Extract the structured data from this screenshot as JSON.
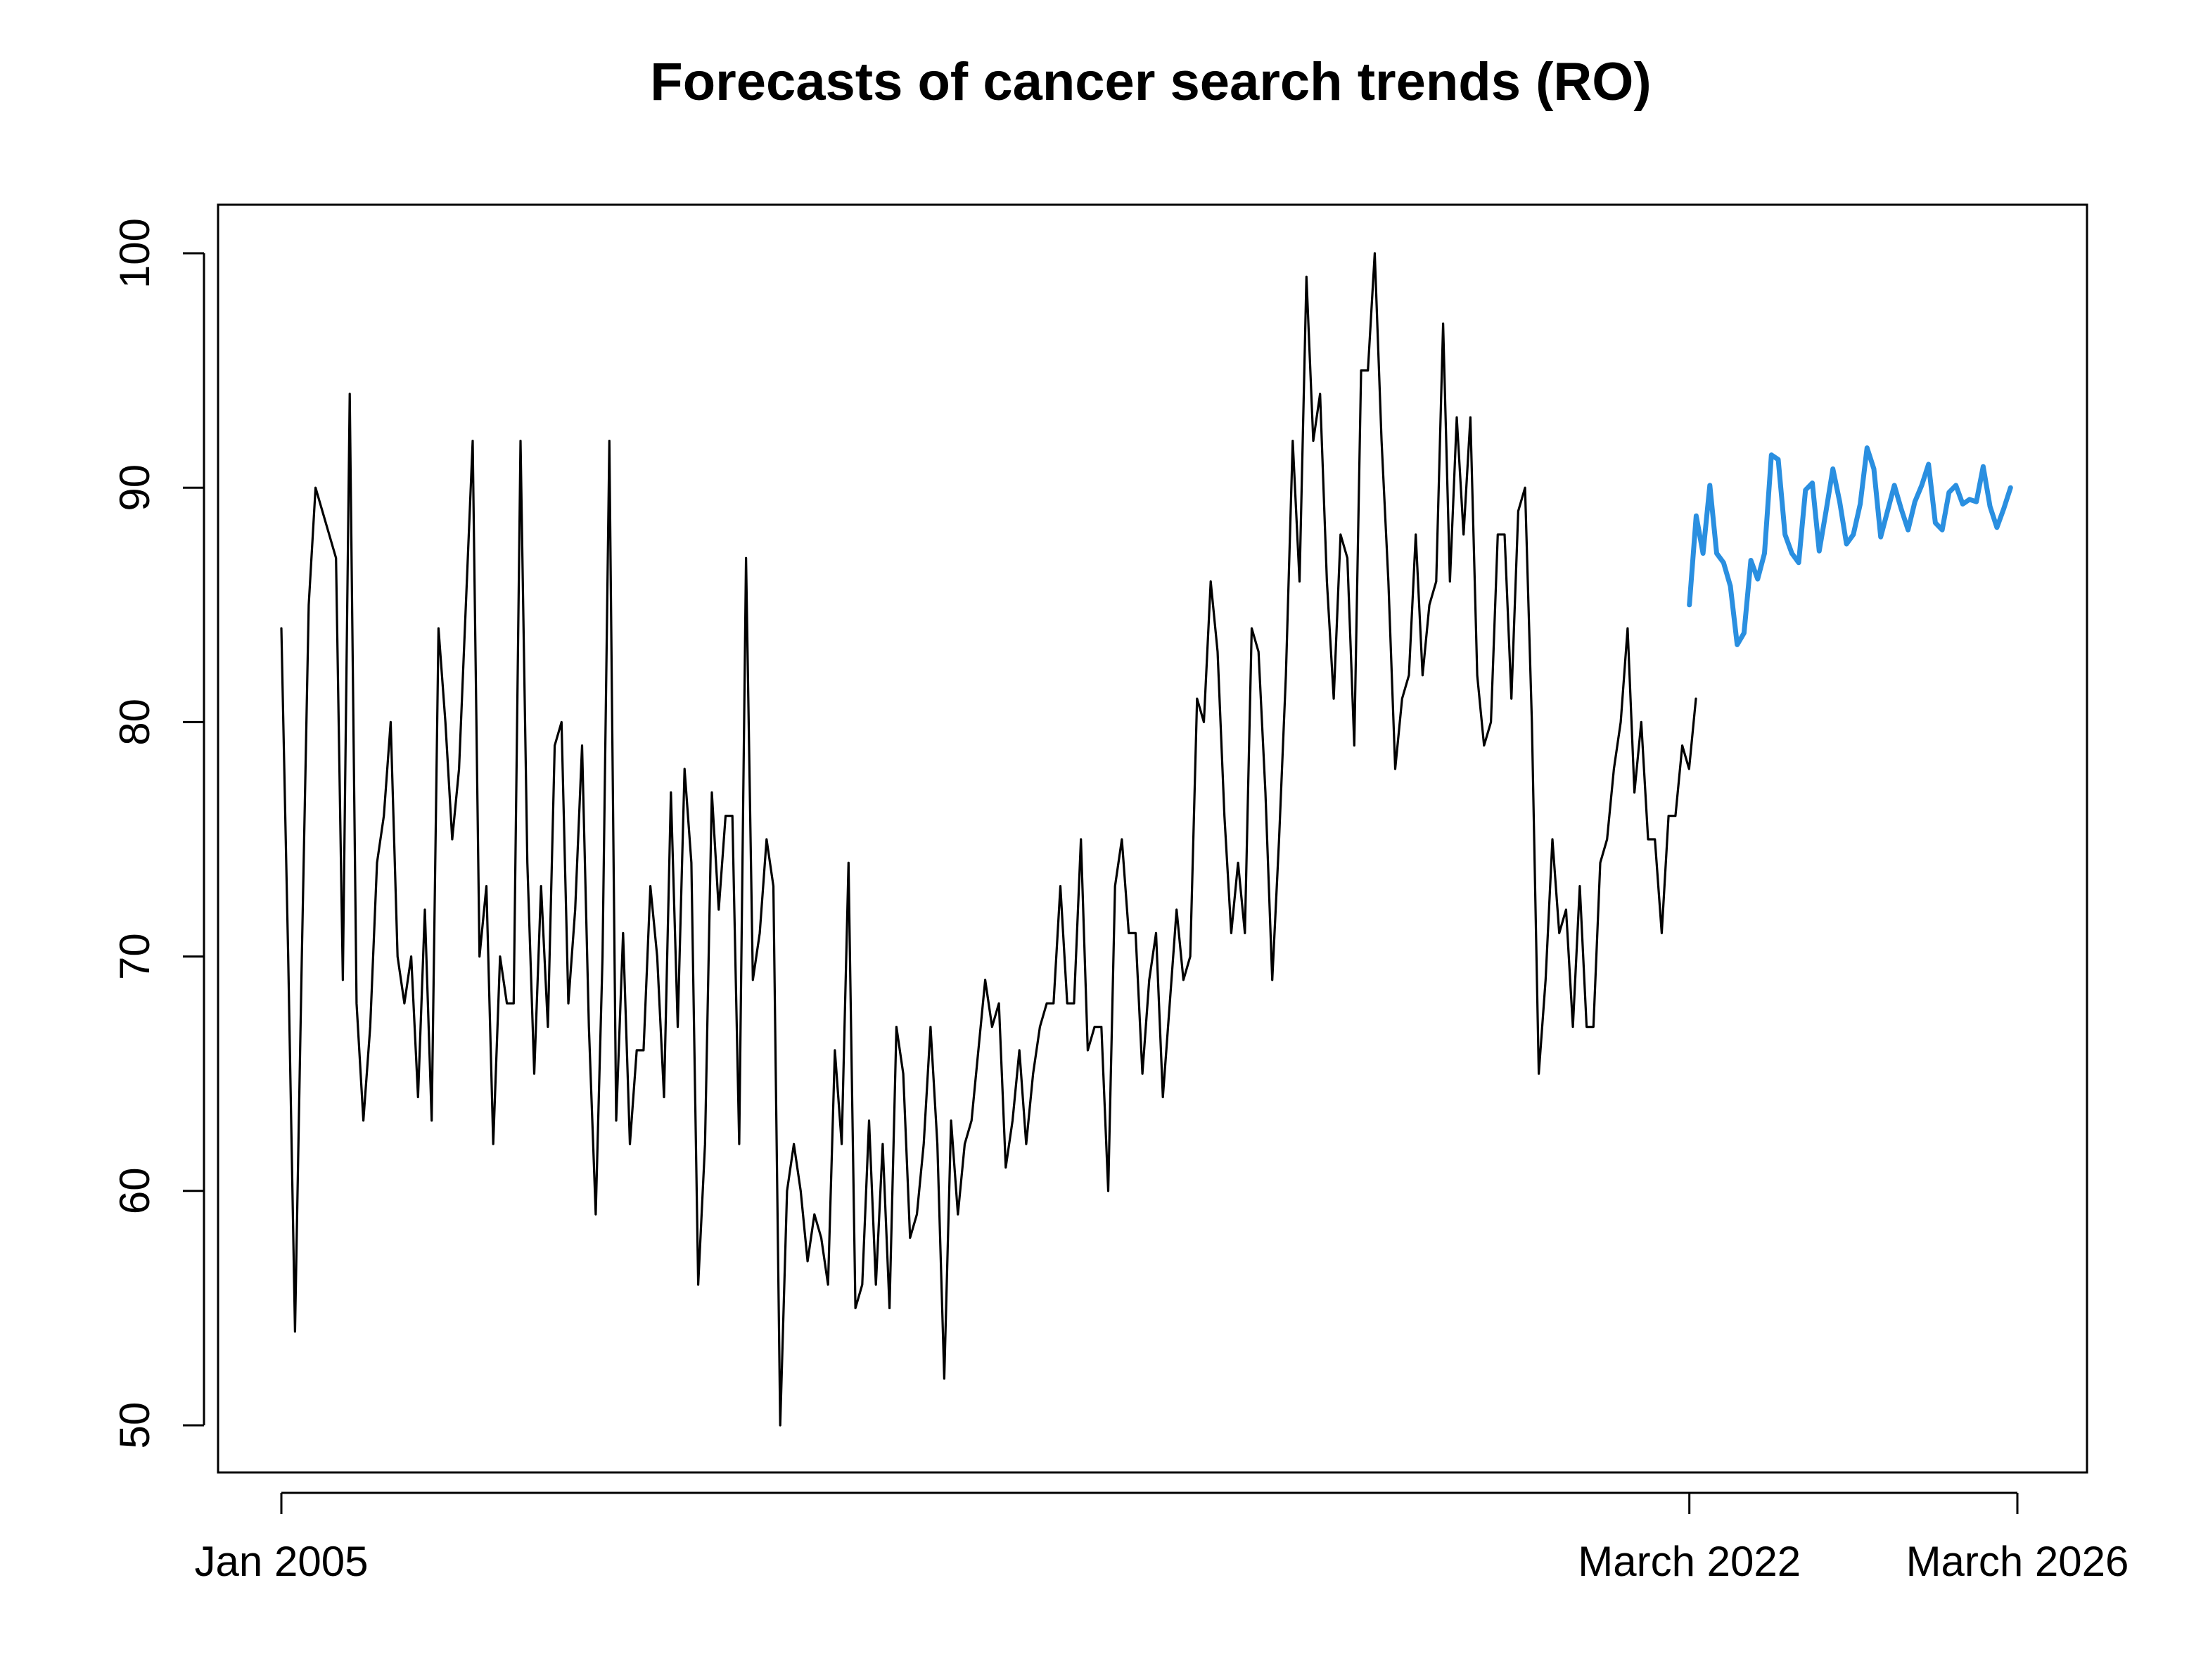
{
  "chart_data": {
    "type": "line",
    "title": "Forecasts of cancer search trends (RO)",
    "xlabel": "",
    "ylabel": "",
    "ylim": [
      50,
      100
    ],
    "yticks": [
      50,
      60,
      70,
      80,
      90,
      100
    ],
    "ytick_labels": [
      "50",
      "60",
      "70",
      "80",
      "90",
      "100"
    ],
    "xlim": [
      2005.0,
      2026.17
    ],
    "xticks": [
      2005.0,
      2022.17,
      2026.17
    ],
    "xtick_labels": [
      "Jan 2005",
      "March 2022",
      "March 2026"
    ],
    "grid": false,
    "legend": "none",
    "colors": {
      "observed": "#000000",
      "forecast": "#2a8fe0",
      "axes": "#000000"
    },
    "series": [
      {
        "name": "observed",
        "start": 2005.0,
        "step": 0.0833333,
        "values": [
          84,
          70,
          54,
          70,
          85,
          90,
          89,
          88,
          87,
          69,
          94,
          68,
          63,
          67,
          74,
          76,
          80,
          70,
          68,
          70,
          64,
          72,
          63,
          84,
          80,
          75,
          78,
          85,
          92,
          70,
          73,
          62,
          70,
          68,
          68,
          92,
          74,
          65,
          73,
          67,
          79,
          80,
          68,
          72,
          79,
          67,
          59,
          70,
          92,
          63,
          71,
          62,
          66,
          66,
          73,
          70,
          64,
          77,
          67,
          78,
          74,
          56,
          62,
          77,
          72,
          76,
          76,
          62,
          87,
          69,
          71,
          75,
          73,
          50,
          60,
          62,
          60,
          57,
          59,
          58,
          56,
          66,
          62,
          74,
          55,
          56,
          63,
          56,
          62,
          55,
          67,
          65,
          58,
          59,
          62,
          67,
          62,
          52,
          63,
          59,
          62,
          63,
          66,
          69,
          67,
          68,
          61,
          63,
          66,
          62,
          65,
          67,
          68,
          68,
          73,
          68,
          68,
          75,
          66,
          67,
          67,
          60,
          73,
          75,
          71,
          71,
          65,
          69,
          71,
          64,
          68,
          72,
          69,
          70,
          81,
          80,
          86,
          83,
          76,
          71,
          74,
          71,
          84,
          83,
          77,
          69,
          75,
          82,
          92,
          86,
          99,
          92,
          94,
          86,
          81,
          88,
          87,
          79,
          95,
          95,
          100,
          92,
          86,
          78,
          81,
          82,
          88,
          82,
          85,
          86,
          97,
          86,
          93,
          88,
          93,
          82,
          79,
          80,
          88,
          88,
          81,
          89,
          90,
          80,
          65,
          69,
          75,
          71,
          72,
          67,
          73,
          67,
          67,
          74,
          75,
          78,
          80,
          84,
          77,
          80,
          75,
          75,
          71,
          76,
          76,
          79,
          78,
          81
        ]
      },
      {
        "name": "forecast",
        "start": 2022.17,
        "step": 0.0833333,
        "values": [
          85,
          88.8,
          87.2,
          90.1,
          87.2,
          86.8,
          85.8,
          83.3,
          83.8,
          86.9,
          86.1,
          87.2,
          91.4,
          91.2,
          88,
          87.2,
          86.8,
          89.9,
          90.2,
          87.3,
          89,
          90.8,
          89.4,
          87.6,
          88,
          89.3,
          91.7,
          90.8,
          87.9,
          89,
          90.1,
          89.1,
          88.2,
          89.4,
          90.1,
          91,
          88.5,
          88.2,
          89.8,
          90.1,
          89.3,
          89.5,
          89.4,
          90.9,
          89.2,
          88.3,
          89.1,
          90
        ]
      }
    ]
  }
}
